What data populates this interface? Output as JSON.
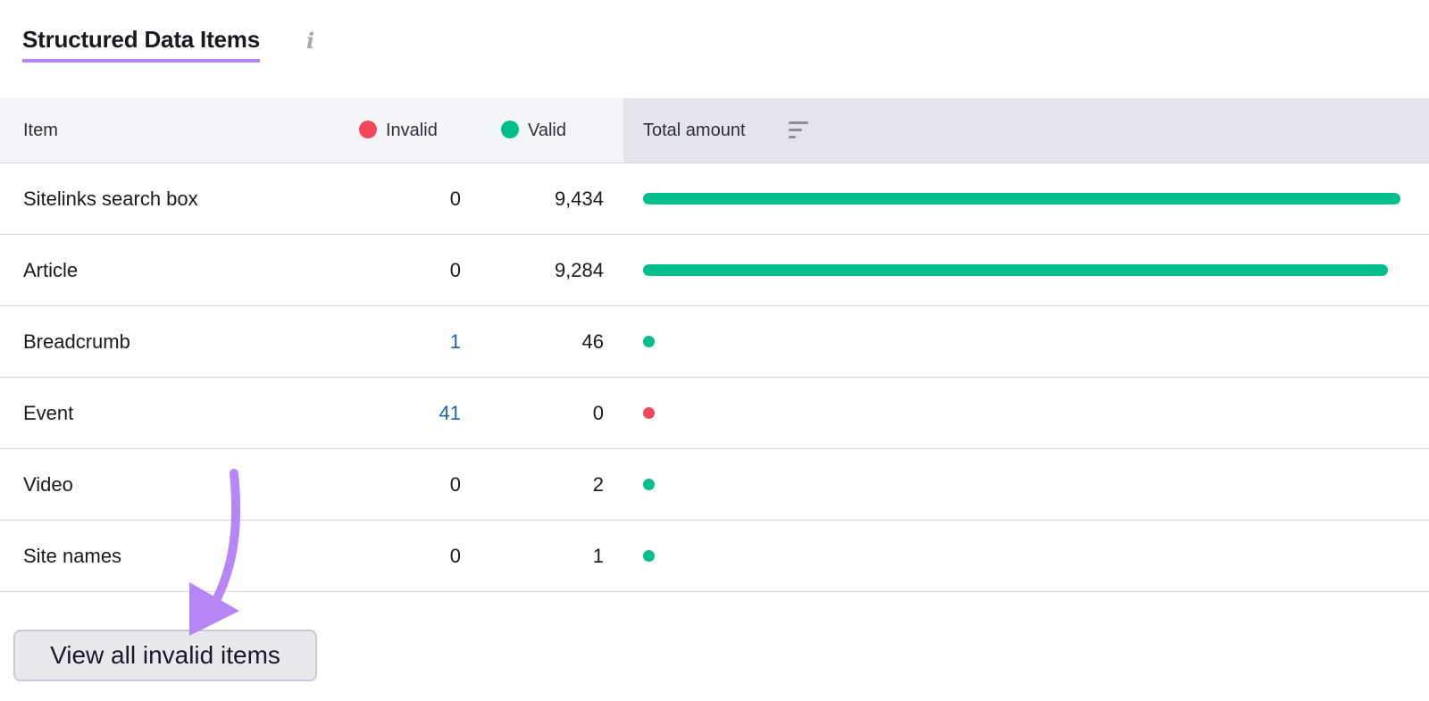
{
  "title": "Structured Data Items",
  "info_icon": "info-icon",
  "columns": {
    "item": "Item",
    "invalid": "Invalid",
    "valid": "Valid",
    "total": "Total amount"
  },
  "colors": {
    "invalid": "#f2475a",
    "valid": "#00bf8c",
    "accent": "#b785f5",
    "link": "#1e64b4"
  },
  "rows": [
    {
      "item": "Sitelinks search box",
      "invalid": "0",
      "valid": "9,434",
      "total_fraction": 1.0,
      "status": "valid"
    },
    {
      "item": "Article",
      "invalid": "0",
      "valid": "9,284",
      "total_fraction": 0.984,
      "status": "valid"
    },
    {
      "item": "Breadcrumb",
      "invalid": "1",
      "valid": "46",
      "total_fraction": 0.005,
      "status": "valid"
    },
    {
      "item": "Event",
      "invalid": "41",
      "valid": "0",
      "total_fraction": 0.004,
      "status": "invalid"
    },
    {
      "item": "Video",
      "invalid": "0",
      "valid": "2",
      "total_fraction": 0.0002,
      "status": "valid"
    },
    {
      "item": "Site names",
      "invalid": "0",
      "valid": "1",
      "total_fraction": 0.0001,
      "status": "valid"
    }
  ],
  "button": {
    "label": "View all invalid items"
  }
}
